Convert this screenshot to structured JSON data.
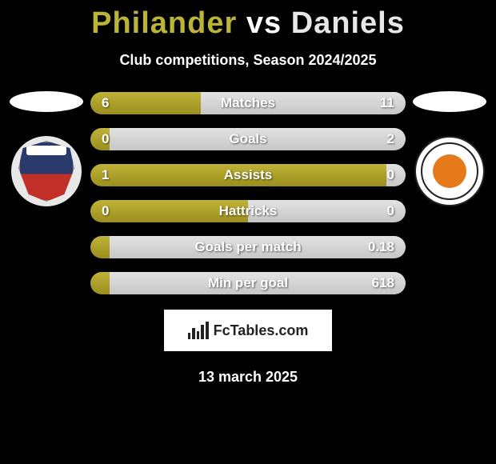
{
  "title": {
    "text": "Philander vs Daniels",
    "p1_color": "#bcb437",
    "p2_color": "#e7e7e7"
  },
  "subtitle": "Club competitions, Season 2024/2025",
  "date": "13 march 2025",
  "brand": {
    "label": "FcTables.com"
  },
  "metrics": [
    {
      "label": "Matches",
      "left_val": "6",
      "right_val": "11",
      "left_pct": 35
    },
    {
      "label": "Goals",
      "left_val": "0",
      "right_val": "2",
      "left_pct": 6
    },
    {
      "label": "Assists",
      "left_val": "1",
      "right_val": "0",
      "left_pct": 94
    },
    {
      "label": "Hattricks",
      "left_val": "0",
      "right_val": "0",
      "left_pct": 50
    },
    {
      "label": "Goals per match",
      "left_val": "",
      "right_val": "0.18",
      "left_pct": 6
    },
    {
      "label": "Min per goal",
      "left_val": "",
      "right_val": "618",
      "left_pct": 6
    }
  ],
  "colors": {
    "bar_left_grad_top": "#bfb338",
    "bar_left_grad_bot": "#9a8e1e",
    "bar_right_grad_top": "#e2e2e2",
    "bar_right_grad_bot": "#c7c7c7",
    "bg": "#000000"
  }
}
